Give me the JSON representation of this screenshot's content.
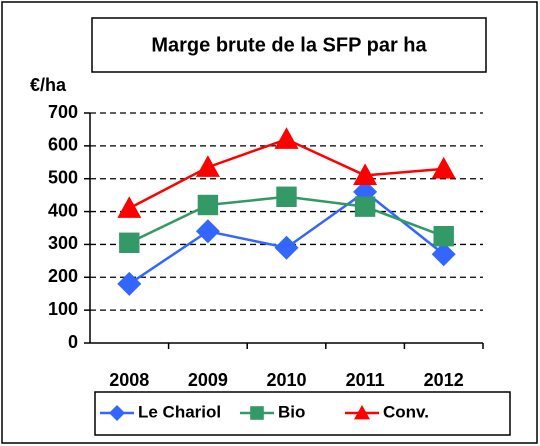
{
  "chart_data": {
    "type": "line",
    "title": "Marge brute de la SFP par ha",
    "y_label": "€/ha",
    "categories": [
      "2008",
      "2009",
      "2010",
      "2011",
      "2012"
    ],
    "series": [
      {
        "name": "Le Chariol",
        "color": "#3366ff",
        "marker": "diamond",
        "values": [
          180,
          340,
          290,
          460,
          270
        ]
      },
      {
        "name": "Bio",
        "color": "#339966",
        "marker": "square",
        "values": [
          305,
          420,
          445,
          415,
          325
        ]
      },
      {
        "name": "Conv.",
        "color": "#ff0000",
        "marker": "triangle",
        "values": [
          410,
          535,
          620,
          510,
          530
        ]
      }
    ],
    "ylim": [
      0,
      700
    ],
    "yticks": [
      0,
      100,
      200,
      300,
      400,
      500,
      600,
      700
    ],
    "grid": true,
    "legend": "bottom"
  }
}
